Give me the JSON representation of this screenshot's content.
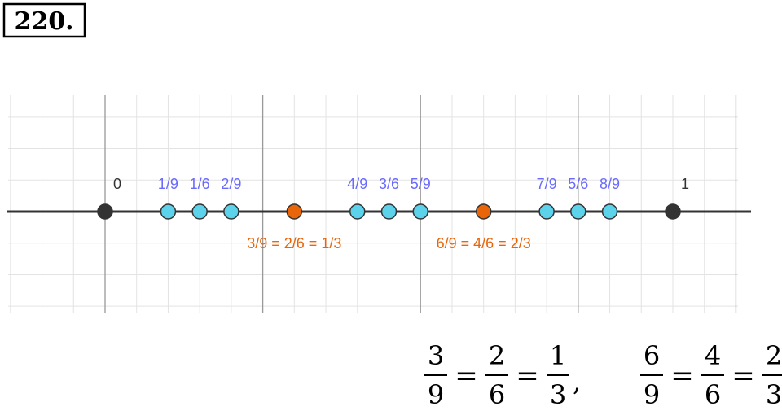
{
  "header": {
    "title": "220."
  },
  "number_line": {
    "points": [
      {
        "label": "0",
        "value": 0,
        "color": "#333333",
        "label_color": "#333333"
      },
      {
        "label": "1/9",
        "value": 0.1111,
        "color": "#5cd3ea",
        "label_color": "#6a6aff"
      },
      {
        "label": "1/6",
        "value": 0.1667,
        "color": "#5cd3ea",
        "label_color": "#6a6aff"
      },
      {
        "label": "2/9",
        "value": 0.2222,
        "color": "#5cd3ea",
        "label_color": "#6a6aff"
      },
      {
        "label": "3/9 = 2/6 = 1/3",
        "value": 0.3333,
        "color": "#e8650a",
        "label_color": "#e8650a",
        "label_below": true
      },
      {
        "label": "4/9",
        "value": 0.4444,
        "color": "#5cd3ea",
        "label_color": "#6a6aff"
      },
      {
        "label": "3/6",
        "value": 0.5,
        "color": "#5cd3ea",
        "label_color": "#6a6aff"
      },
      {
        "label": "5/9",
        "value": 0.5556,
        "color": "#5cd3ea",
        "label_color": "#6a6aff"
      },
      {
        "label": "6/9 = 4/6 = 2/3",
        "value": 0.6667,
        "color": "#e8650a",
        "label_color": "#e8650a",
        "label_below": true
      },
      {
        "label": "7/9",
        "value": 0.7778,
        "color": "#5cd3ea",
        "label_color": "#6a6aff"
      },
      {
        "label": "5/6",
        "value": 0.8333,
        "color": "#5cd3ea",
        "label_color": "#6a6aff"
      },
      {
        "label": "8/9",
        "value": 0.8889,
        "color": "#5cd3ea",
        "label_color": "#6a6aff"
      },
      {
        "label": "1",
        "value": 1,
        "color": "#333333",
        "label_color": "#333333"
      }
    ]
  },
  "equations": [
    {
      "terms": [
        {
          "num": "3",
          "den": "9"
        },
        {
          "num": "2",
          "den": "6"
        },
        {
          "num": "1",
          "den": "3"
        }
      ],
      "sep": "=",
      "end": ","
    },
    {
      "terms": [
        {
          "num": "6",
          "den": "9"
        },
        {
          "num": "4",
          "den": "6"
        },
        {
          "num": "2",
          "den": "3"
        }
      ],
      "sep": "="
    }
  ]
}
